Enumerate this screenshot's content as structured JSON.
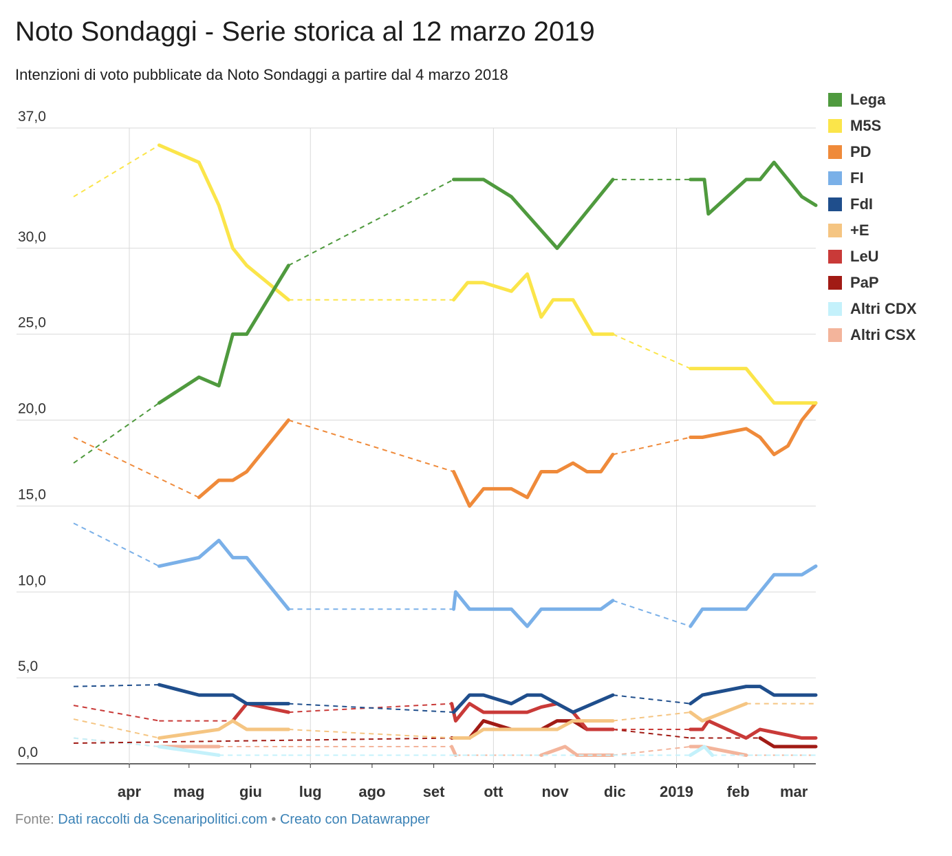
{
  "header": {
    "title": "Noto Sondaggi - Serie storica al 12 marzo 2019",
    "subtitle": "Intenzioni di voto pubblicate da Noto Sondaggi a partire dal 4 marzo 2018"
  },
  "footer": {
    "prefix": "Fonte: ",
    "source_label": "Dati raccolti da Scenaripolitici.com",
    "separator": " • ",
    "credit_label": "Creato con Datawrapper"
  },
  "chart_data": {
    "type": "line",
    "title": "Noto Sondaggi - Serie storica al 12 marzo 2019",
    "subtitle": "Intenzioni di voto pubblicate da Noto Sondaggi a partire dal 4 marzo 2018",
    "xlabel": "",
    "ylabel": "",
    "ylim": [
      0,
      37
    ],
    "xlim": [
      "2018-03-04",
      "2019-03-12"
    ],
    "yticks": [
      "0,0",
      "5,0",
      "10,0",
      "15,0",
      "20,0",
      "25,0",
      "30,0",
      "37,0"
    ],
    "ytick_values": [
      0,
      5,
      10,
      15,
      20,
      25,
      30,
      37
    ],
    "xticks": [
      {
        "label": "apr",
        "date": "2018-04-01"
      },
      {
        "label": "mag",
        "date": "2018-05-01"
      },
      {
        "label": "giu",
        "date": "2018-06-01"
      },
      {
        "label": "lug",
        "date": "2018-07-01"
      },
      {
        "label": "ago",
        "date": "2018-08-01"
      },
      {
        "label": "set",
        "date": "2018-09-01"
      },
      {
        "label": "ott",
        "date": "2018-10-01"
      },
      {
        "label": "nov",
        "date": "2018-11-01"
      },
      {
        "label": "dic",
        "date": "2018-12-01"
      },
      {
        "label": "2019",
        "date": "2019-01-01"
      },
      {
        "label": "feb",
        "date": "2019-02-01"
      },
      {
        "label": "mar",
        "date": "2019-03-01"
      }
    ],
    "grid": true,
    "legend_position": "right",
    "gaps": [
      [
        "2018-06-20",
        "2018-09-10"
      ],
      [
        "2018-11-30",
        "2019-01-08"
      ]
    ],
    "series": [
      {
        "name": "Lega",
        "color": "#4f9a3e",
        "points": [
          [
            "2018-03-04",
            17.5
          ],
          [
            "2018-04-16",
            21
          ],
          [
            "2018-05-06",
            22.5
          ],
          [
            "2018-05-16",
            22
          ],
          [
            "2018-05-23",
            25
          ],
          [
            "2018-05-30",
            25
          ],
          [
            "2018-06-20",
            29
          ],
          [
            "2018-09-11",
            34
          ],
          [
            "2018-09-26",
            34
          ],
          [
            "2018-10-10",
            33
          ],
          [
            "2018-11-02",
            30
          ],
          [
            "2018-11-30",
            34
          ],
          [
            "2019-01-08",
            34
          ],
          [
            "2019-01-15",
            34
          ],
          [
            "2019-01-17",
            32
          ],
          [
            "2019-02-05",
            34
          ],
          [
            "2019-02-12",
            34
          ],
          [
            "2019-02-19",
            35
          ],
          [
            "2019-03-05",
            33
          ],
          [
            "2019-03-12",
            32.5
          ]
        ]
      },
      {
        "name": "M5S",
        "color": "#fbe54a",
        "points": [
          [
            "2018-03-04",
            33
          ],
          [
            "2018-04-16",
            36
          ],
          [
            "2018-05-06",
            35
          ],
          [
            "2018-05-16",
            32.5
          ],
          [
            "2018-05-23",
            30
          ],
          [
            "2018-05-30",
            29
          ],
          [
            "2018-06-20",
            27
          ],
          [
            "2018-09-11",
            27
          ],
          [
            "2018-09-18",
            28
          ],
          [
            "2018-09-26",
            28
          ],
          [
            "2018-10-10",
            27.5
          ],
          [
            "2018-10-18",
            28.5
          ],
          [
            "2018-10-25",
            26
          ],
          [
            "2018-10-31",
            27
          ],
          [
            "2018-11-10",
            27
          ],
          [
            "2018-11-20",
            25
          ],
          [
            "2018-11-30",
            25
          ],
          [
            "2019-01-08",
            23
          ],
          [
            "2019-02-05",
            23
          ],
          [
            "2019-02-19",
            21
          ],
          [
            "2019-03-12",
            21
          ]
        ]
      },
      {
        "name": "PD",
        "color": "#ef8a3a",
        "points": [
          [
            "2018-03-04",
            19
          ],
          [
            "2018-05-06",
            15.5
          ],
          [
            "2018-05-16",
            16.5
          ],
          [
            "2018-05-23",
            16.5
          ],
          [
            "2018-05-30",
            17
          ],
          [
            "2018-06-20",
            20
          ],
          [
            "2018-09-11",
            17
          ],
          [
            "2018-09-19",
            15
          ],
          [
            "2018-09-26",
            16
          ],
          [
            "2018-10-10",
            16
          ],
          [
            "2018-10-18",
            15.5
          ],
          [
            "2018-10-25",
            17
          ],
          [
            "2018-11-02",
            17
          ],
          [
            "2018-11-10",
            17.5
          ],
          [
            "2018-11-17",
            17
          ],
          [
            "2018-11-24",
            17
          ],
          [
            "2018-11-30",
            18
          ],
          [
            "2019-01-08",
            19
          ],
          [
            "2019-01-14",
            19
          ],
          [
            "2019-02-05",
            19.5
          ],
          [
            "2019-02-12",
            19
          ],
          [
            "2019-02-19",
            18
          ],
          [
            "2019-02-26",
            18.5
          ],
          [
            "2019-03-05",
            20
          ],
          [
            "2019-03-12",
            21
          ]
        ]
      },
      {
        "name": "FI",
        "color": "#7ab0e8",
        "points": [
          [
            "2018-03-04",
            14
          ],
          [
            "2018-04-16",
            11.5
          ],
          [
            "2018-05-06",
            12
          ],
          [
            "2018-05-16",
            13
          ],
          [
            "2018-05-23",
            12
          ],
          [
            "2018-05-30",
            12
          ],
          [
            "2018-06-20",
            9
          ],
          [
            "2018-09-11",
            9
          ],
          [
            "2018-09-12",
            10
          ],
          [
            "2018-09-19",
            9
          ],
          [
            "2018-10-10",
            9
          ],
          [
            "2018-10-18",
            8
          ],
          [
            "2018-10-25",
            9
          ],
          [
            "2018-11-24",
            9
          ],
          [
            "2018-11-30",
            9.5
          ],
          [
            "2019-01-08",
            8
          ],
          [
            "2019-01-14",
            9
          ],
          [
            "2019-02-05",
            9
          ],
          [
            "2019-02-19",
            11
          ],
          [
            "2019-03-05",
            11
          ],
          [
            "2019-03-12",
            11.5
          ]
        ]
      },
      {
        "name": "FdI",
        "color": "#1f4e8c",
        "points": [
          [
            "2018-03-04",
            4.5
          ],
          [
            "2018-04-16",
            4.6
          ],
          [
            "2018-05-06",
            4
          ],
          [
            "2018-05-23",
            4
          ],
          [
            "2018-05-30",
            3.5
          ],
          [
            "2018-06-20",
            3.5
          ],
          [
            "2018-09-11",
            3
          ],
          [
            "2018-09-19",
            4
          ],
          [
            "2018-09-26",
            4
          ],
          [
            "2018-10-10",
            3.5
          ],
          [
            "2018-10-18",
            4
          ],
          [
            "2018-10-25",
            4
          ],
          [
            "2018-11-02",
            3.5
          ],
          [
            "2018-11-10",
            3
          ],
          [
            "2018-11-30",
            4
          ],
          [
            "2019-01-08",
            3.5
          ],
          [
            "2019-01-14",
            4
          ],
          [
            "2019-02-05",
            4.5
          ],
          [
            "2019-02-12",
            4.5
          ],
          [
            "2019-02-19",
            4
          ],
          [
            "2019-03-12",
            4
          ]
        ]
      },
      {
        "name": "+E",
        "color": "#f5c582",
        "points": [
          [
            "2018-03-04",
            2.6
          ],
          [
            "2018-04-16",
            1.5
          ],
          [
            "2018-05-16",
            2
          ],
          [
            "2018-05-23",
            2.5
          ],
          [
            "2018-05-30",
            2
          ],
          [
            "2018-06-20",
            2
          ],
          [
            "2018-09-11",
            1.5
          ],
          [
            "2018-09-19",
            1.5
          ],
          [
            "2018-09-26",
            2
          ],
          [
            "2018-10-10",
            2
          ],
          [
            "2018-11-02",
            2
          ],
          [
            "2018-11-10",
            2.5
          ],
          [
            "2018-11-30",
            2.5
          ],
          [
            "2019-01-08",
            3
          ],
          [
            "2019-01-14",
            2.5
          ],
          [
            "2019-02-05",
            3.5
          ],
          [
            "2019-03-12",
            3.5
          ]
        ]
      },
      {
        "name": "LeU",
        "color": "#c93a38",
        "points": [
          [
            "2018-03-04",
            3.4
          ],
          [
            "2018-04-16",
            2.5
          ],
          [
            "2018-05-23",
            2.5
          ],
          [
            "2018-05-30",
            3.5
          ],
          [
            "2018-06-20",
            3
          ],
          [
            "2018-09-10",
            3.5
          ],
          [
            "2018-09-12",
            2.5
          ],
          [
            "2018-09-19",
            3.5
          ],
          [
            "2018-09-26",
            3
          ],
          [
            "2018-10-18",
            3
          ],
          [
            "2018-10-25",
            3.3
          ],
          [
            "2018-11-02",
            3.5
          ],
          [
            "2018-11-10",
            3
          ],
          [
            "2018-11-17",
            2
          ],
          [
            "2018-11-30",
            2
          ],
          [
            "2019-01-08",
            2
          ],
          [
            "2019-01-14",
            2
          ],
          [
            "2019-01-17",
            2.5
          ],
          [
            "2019-02-05",
            1.5
          ],
          [
            "2019-02-12",
            2
          ],
          [
            "2019-03-05",
            1.5
          ],
          [
            "2019-03-12",
            1.5
          ]
        ]
      },
      {
        "name": "PaP",
        "color": "#a11b15",
        "points": [
          [
            "2018-03-04",
            1.2
          ],
          [
            "2018-09-10",
            1.5
          ],
          [
            "2018-09-19",
            1.5
          ],
          [
            "2018-09-26",
            2.5
          ],
          [
            "2018-10-10",
            2
          ],
          [
            "2018-10-25",
            2
          ],
          [
            "2018-11-02",
            2.5
          ],
          [
            "2018-11-10",
            2.5
          ],
          [
            "2018-11-17",
            2
          ],
          [
            "2018-11-30",
            2
          ],
          [
            "2019-01-08",
            1.5
          ],
          [
            "2019-02-12",
            1.5
          ],
          [
            "2019-02-19",
            1
          ],
          [
            "2019-03-12",
            1
          ]
        ]
      },
      {
        "name": "Altri CDX",
        "color": "#c4f1fb",
        "points": [
          [
            "2018-03-04",
            1.5
          ],
          [
            "2018-04-16",
            1
          ],
          [
            "2018-05-16",
            0.5
          ],
          [
            "2018-06-20",
            0.5
          ],
          [
            "2018-09-11",
            0.5
          ],
          [
            "2018-11-30",
            0.5
          ],
          [
            "2019-01-08",
            0.5
          ],
          [
            "2019-01-15",
            1
          ],
          [
            "2019-01-19",
            0.5
          ],
          [
            "2019-03-12",
            0.5
          ]
        ]
      },
      {
        "name": "Altri CSX",
        "color": "#f3b49b",
        "points": [
          [
            "2018-03-04",
            1.5
          ],
          [
            "2018-04-16",
            1
          ],
          [
            "2018-05-16",
            1
          ],
          [
            "2018-06-20",
            1
          ],
          [
            "2018-09-10",
            1
          ],
          [
            "2018-09-12",
            0.5
          ],
          [
            "2018-10-25",
            0.5
          ],
          [
            "2018-11-06",
            1
          ],
          [
            "2018-11-12",
            0.5
          ],
          [
            "2018-11-30",
            0.5
          ],
          [
            "2019-01-08",
            1
          ],
          [
            "2019-01-14",
            1
          ],
          [
            "2019-02-05",
            0.5
          ],
          [
            "2019-03-12",
            0.5
          ]
        ]
      }
    ]
  }
}
